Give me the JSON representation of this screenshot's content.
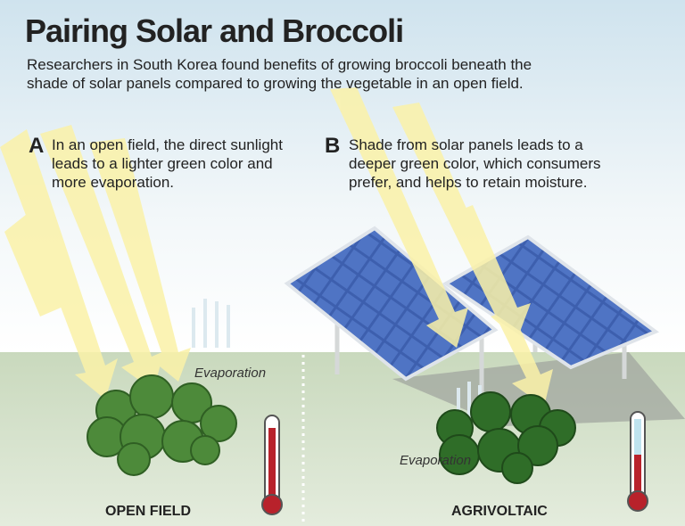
{
  "header": {
    "title": "Pairing Solar and Broccoli",
    "subtitle": "Researchers in South Korea found benefits of growing broccoli beneath the shade of solar panels compared to growing the vegetable in an open field."
  },
  "panels": [
    {
      "letter": "A",
      "text": "In an open field, the direct sunlight leads to a lighter green color and more evaporation.",
      "evaporation_label": "Evaporation",
      "caption": "OPEN FIELD"
    },
    {
      "letter": "B",
      "text": "Shade from solar panels leads to a deeper green color, which consumers prefer, and helps to retain moisture.",
      "evaporation_label": "Evaporation",
      "caption": "AGRIVOLTAIC"
    }
  ]
}
